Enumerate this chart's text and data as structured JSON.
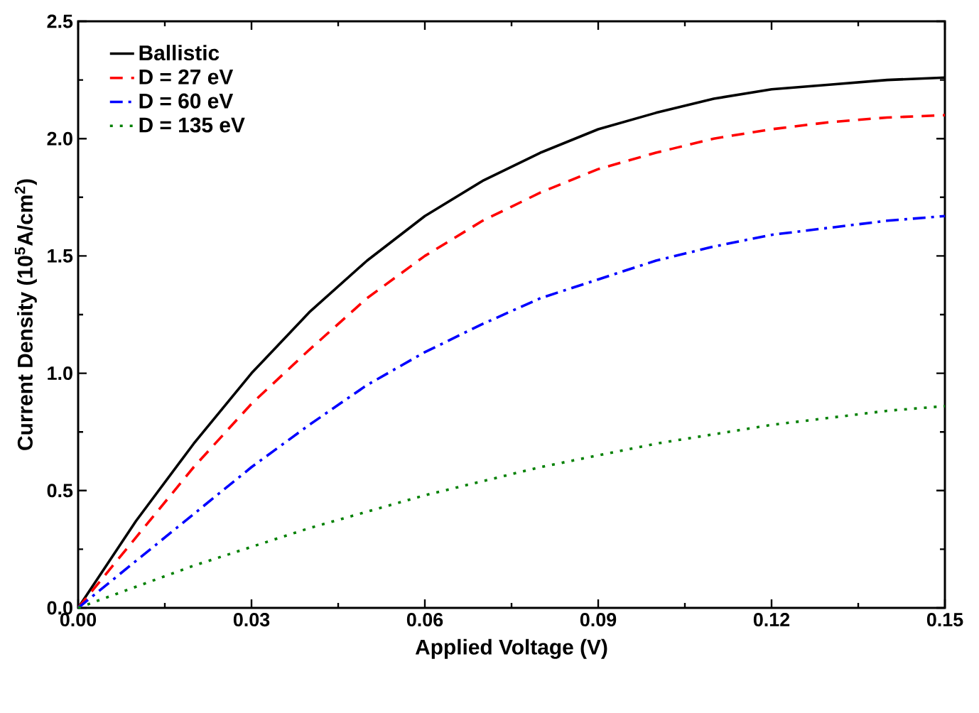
{
  "chart_data": {
    "type": "line",
    "xlabel": "Applied Voltage (V)",
    "ylabel": "Current Density (10$^{5}$A/cm$^{2}$)",
    "x": [
      0,
      0.01,
      0.02,
      0.03,
      0.04,
      0.05,
      0.06,
      0.07,
      0.08,
      0.09,
      0.1,
      0.11,
      0.12,
      0.13,
      0.14,
      0.15
    ],
    "xlim": [
      0,
      0.15
    ],
    "ylim": [
      0,
      2.5
    ],
    "xticks": [
      {
        "value": 0,
        "label": "0.00"
      },
      {
        "value": 0.03,
        "label": "0.03"
      },
      {
        "value": 0.06,
        "label": "0.06"
      },
      {
        "value": 0.09,
        "label": "0.09"
      },
      {
        "value": 0.12,
        "label": "0.12"
      },
      {
        "value": 0.15,
        "label": "0.15"
      }
    ],
    "yticks": [
      {
        "value": 0,
        "label": "0.0"
      },
      {
        "value": 0.5,
        "label": "0.5"
      },
      {
        "value": 1,
        "label": "1.0"
      },
      {
        "value": 1.5,
        "label": "1.5"
      },
      {
        "value": 2,
        "label": "2.0"
      },
      {
        "value": 2.5,
        "label": "2.5"
      }
    ],
    "legend": "top left",
    "grid": false,
    "series": [
      {
        "name": "Ballistic",
        "color": "#000000",
        "line_style": "solid",
        "values": [
          0,
          0.37,
          0.7,
          1.0,
          1.26,
          1.48,
          1.67,
          1.82,
          1.94,
          2.04,
          2.11,
          2.17,
          2.21,
          2.23,
          2.25,
          2.26
        ]
      },
      {
        "name": "D = 27 eV",
        "color": "#ff0000",
        "line_style": "dashed",
        "values": [
          0,
          0.3,
          0.6,
          0.87,
          1.1,
          1.32,
          1.5,
          1.65,
          1.77,
          1.87,
          1.94,
          2.0,
          2.04,
          2.07,
          2.09,
          2.1
        ]
      },
      {
        "name": "D = 60 eV",
        "color": "#0000ff",
        "line_style": "dashdot",
        "values": [
          0,
          0.2,
          0.4,
          0.6,
          0.78,
          0.95,
          1.09,
          1.21,
          1.32,
          1.4,
          1.48,
          1.54,
          1.59,
          1.62,
          1.65,
          1.67
        ]
      },
      {
        "name": "D = 135 eV",
        "color": "#008000",
        "line_style": "dotted",
        "values": [
          0,
          0.09,
          0.18,
          0.26,
          0.34,
          0.41,
          0.48,
          0.54,
          0.6,
          0.65,
          0.7,
          0.74,
          0.78,
          0.81,
          0.84,
          0.86
        ]
      }
    ]
  }
}
